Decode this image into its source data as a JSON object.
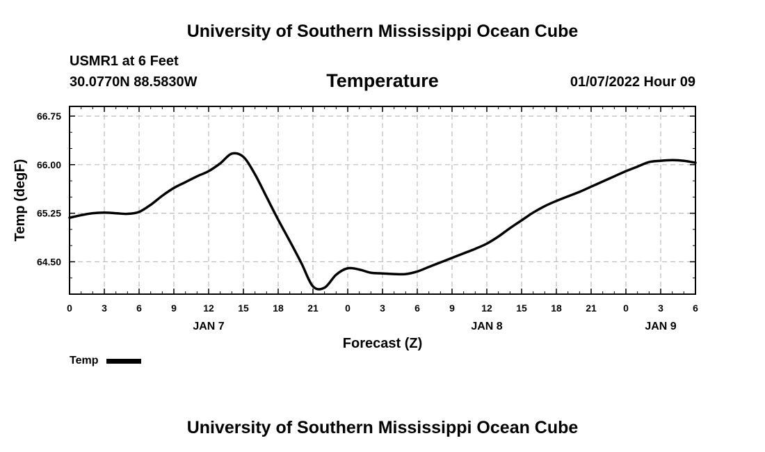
{
  "header": {
    "title": "University of Southern Mississippi Ocean Cube",
    "station": "USMR1 at 6 Feet",
    "coords": "30.0770N  88.5830W",
    "valid_time": "01/07/2022 Hour 09"
  },
  "footer": {
    "title": "University of Southern Mississippi Ocean Cube"
  },
  "legend": {
    "label": "Temp"
  },
  "colors": {
    "line": "#000000",
    "grid": "#bbbbbb"
  },
  "chart_data": {
    "type": "line",
    "title": "Temperature",
    "xlabel": "Forecast (Z)",
    "ylabel": "Temp (degF)",
    "x_unit": "hours from 01/07/2022 00Z",
    "xlim": [
      0,
      54
    ],
    "ylim": [
      64.0,
      66.9
    ],
    "x_ticks": [
      0,
      3,
      6,
      9,
      12,
      15,
      18,
      21,
      24,
      27,
      30,
      33,
      36,
      39,
      42,
      45,
      48,
      51,
      54
    ],
    "x_tick_labels": [
      "0",
      "3",
      "6",
      "9",
      "12",
      "15",
      "18",
      "21",
      "0",
      "3",
      "6",
      "9",
      "12",
      "15",
      "18",
      "21",
      "0",
      "3",
      "6"
    ],
    "y_ticks": [
      64.5,
      65.25,
      66.0,
      66.75
    ],
    "y_tick_labels": [
      "64.50",
      "65.25",
      "66.00",
      "66.75"
    ],
    "date_labels": [
      {
        "x": 12,
        "label": "JAN 7"
      },
      {
        "x": 36,
        "label": "JAN 8"
      },
      {
        "x": 51,
        "label": "JAN 9"
      }
    ],
    "grid": true,
    "legend_position": "bottom-left",
    "series": [
      {
        "name": "Temp",
        "x": [
          0,
          1,
          2,
          3,
          4,
          5,
          6,
          7,
          8,
          9,
          10,
          11,
          12,
          13,
          14,
          15,
          16,
          17,
          18,
          19,
          20,
          21,
          22,
          23,
          24,
          25,
          26,
          27,
          28,
          29,
          30,
          31,
          32,
          33,
          34,
          35,
          36,
          37,
          38,
          39,
          40,
          41,
          42,
          43,
          44,
          45,
          46,
          47,
          48,
          49,
          50,
          51,
          52,
          53,
          54
        ],
        "values": [
          65.18,
          65.22,
          65.25,
          65.26,
          65.25,
          65.24,
          65.27,
          65.38,
          65.52,
          65.64,
          65.73,
          65.82,
          65.9,
          66.02,
          66.17,
          66.12,
          65.85,
          65.5,
          65.15,
          64.82,
          64.48,
          64.12,
          64.1,
          64.3,
          64.4,
          64.38,
          64.33,
          64.32,
          64.31,
          64.31,
          64.35,
          64.42,
          64.49,
          64.56,
          64.63,
          64.7,
          64.78,
          64.89,
          65.02,
          65.14,
          65.26,
          65.36,
          65.44,
          65.51,
          65.58,
          65.66,
          65.74,
          65.82,
          65.9,
          65.97,
          66.04,
          66.06,
          66.07,
          66.06,
          66.03
        ]
      }
    ]
  }
}
